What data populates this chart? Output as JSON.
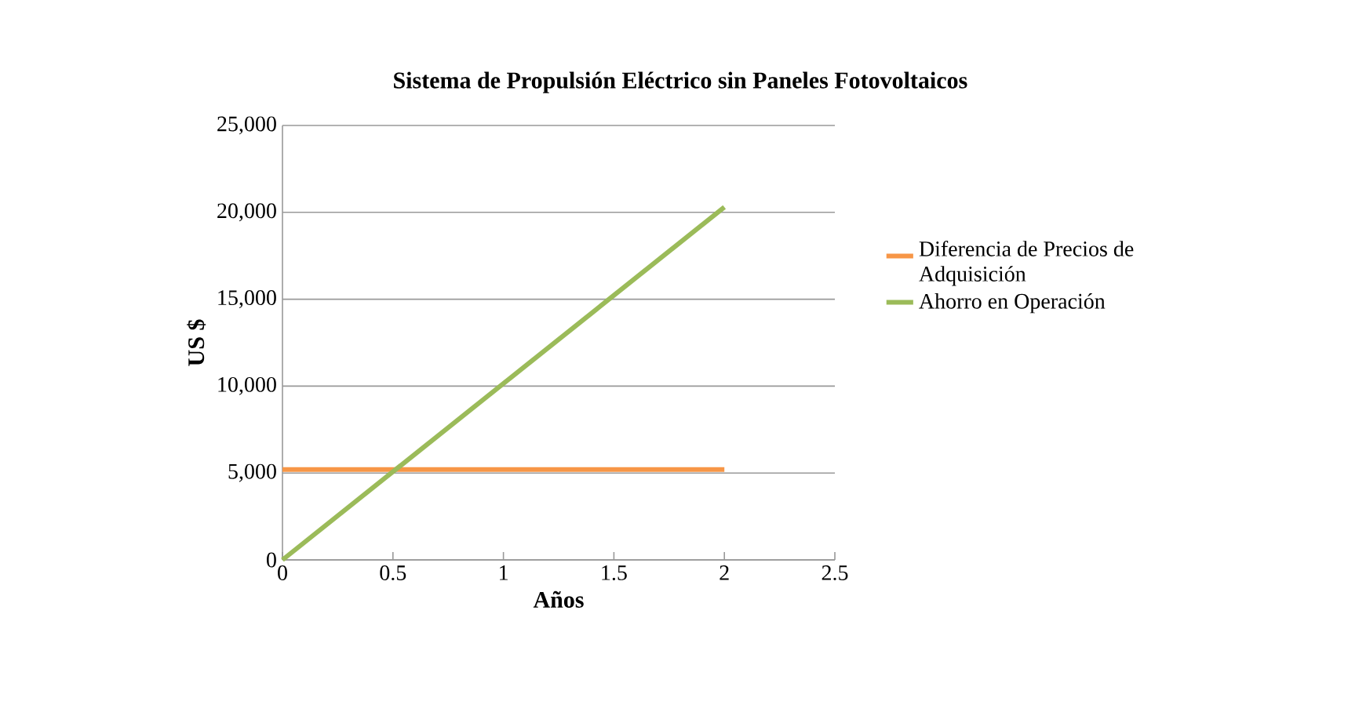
{
  "chart_data": {
    "type": "line",
    "title": "Sistema de Propulsión Eléctrico sin Paneles Fotovoltaicos",
    "xlabel": "Años",
    "ylabel": "US $",
    "series": [
      {
        "name": "Diferencia de Precios de Adquisición",
        "color": "#f79646",
        "values": [
          5200,
          5200
        ]
      },
      {
        "name": "Ahorro en Operación",
        "color": "#9bbb59",
        "values": [
          0,
          20300
        ]
      }
    ],
    "x": [
      0,
      2
    ],
    "xlim": [
      0,
      2.5
    ],
    "xticks": [
      0,
      0.5,
      1,
      1.5,
      2,
      2.5
    ],
    "ylim": [
      0,
      25000
    ],
    "yticks": [
      0,
      {
        "value": 5000,
        "label": "5,000"
      },
      {
        "value": 10000,
        "label": "10,000"
      },
      {
        "value": 15000,
        "label": "15,000"
      },
      {
        "value": 20000,
        "label": "20,000"
      },
      {
        "value": 25000,
        "label": "25,000"
      }
    ],
    "grid": "y",
    "legend": "right",
    "marker": "none",
    "line_style": "solid"
  }
}
